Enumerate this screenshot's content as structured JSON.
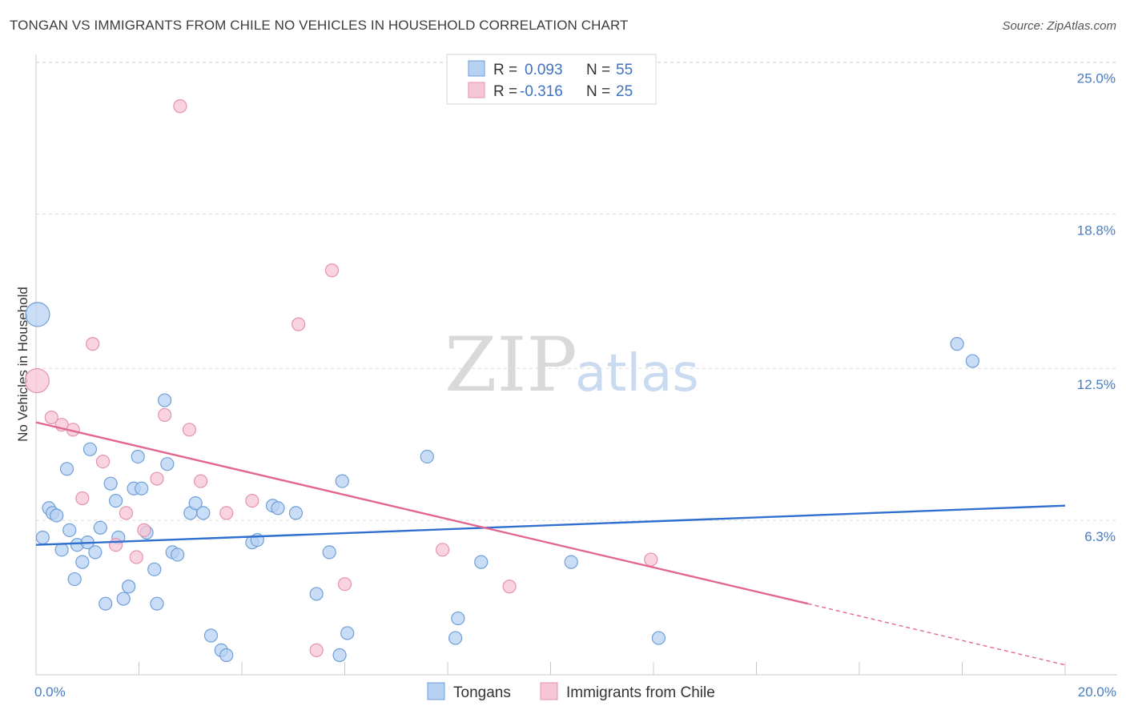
{
  "header": {
    "title": "TONGAN VS IMMIGRANTS FROM CHILE NO VEHICLES IN HOUSEHOLD CORRELATION CHART",
    "source": "Source: ZipAtlas.com"
  },
  "watermark": {
    "zip": "ZIP",
    "atlas": "atlas"
  },
  "colors": {
    "tongans_fill": "#b7d1f3",
    "tongans_stroke": "#6f9fd8",
    "tongans_line": "#2f6fcf",
    "chile_fill": "#f7c6d6",
    "chile_stroke": "#e592ad",
    "chile_line": "#e2678f",
    "grid": "#dcdcdc",
    "tick_text": "#4a7cc0"
  },
  "legend": {
    "rows": [
      {
        "r_label": "R =",
        "r_value": "0.093",
        "n_label": "N =",
        "n_value": "55"
      },
      {
        "r_label": "R =",
        "r_value": "-0.316",
        "n_label": "N =",
        "n_value": "25"
      }
    ]
  },
  "chart_data": {
    "type": "scatter",
    "title": "TONGAN VS IMMIGRANTS FROM CHILE NO VEHICLES IN HOUSEHOLD CORRELATION CHART",
    "xlabel": "",
    "ylabel": "No Vehicles in Household",
    "xlim": [
      0,
      20
    ],
    "ylim": [
      0,
      25.8
    ],
    "x_tick_labels": [
      "0.0%",
      "20.0%"
    ],
    "y_ticks": [
      {
        "value": 6.3,
        "label": "6.3%"
      },
      {
        "value": 12.5,
        "label": "12.5%"
      },
      {
        "value": 18.8,
        "label": "18.8%"
      },
      {
        "value": 25.0,
        "label": "25.0%"
      }
    ],
    "series": [
      {
        "name": "Tongans",
        "r": 0.093,
        "n": 55,
        "trend": {
          "x": [
            0,
            20
          ],
          "y": [
            5.3,
            6.9
          ]
        },
        "points": [
          {
            "x": 0.03,
            "y": 14.7,
            "big": true
          },
          {
            "x": 0.13,
            "y": 5.6
          },
          {
            "x": 0.25,
            "y": 6.8
          },
          {
            "x": 0.32,
            "y": 6.6
          },
          {
            "x": 0.4,
            "y": 6.5
          },
          {
            "x": 0.5,
            "y": 5.1
          },
          {
            "x": 0.6,
            "y": 8.4
          },
          {
            "x": 0.65,
            "y": 5.9
          },
          {
            "x": 0.75,
            "y": 3.9
          },
          {
            "x": 0.8,
            "y": 5.3
          },
          {
            "x": 0.9,
            "y": 4.6
          },
          {
            "x": 1.0,
            "y": 5.4
          },
          {
            "x": 1.05,
            "y": 9.2
          },
          {
            "x": 1.15,
            "y": 5.0
          },
          {
            "x": 1.25,
            "y": 6.0
          },
          {
            "x": 1.35,
            "y": 2.9
          },
          {
            "x": 1.45,
            "y": 7.8
          },
          {
            "x": 1.55,
            "y": 7.1
          },
          {
            "x": 1.6,
            "y": 5.6
          },
          {
            "x": 1.7,
            "y": 3.1
          },
          {
            "x": 1.8,
            "y": 3.6
          },
          {
            "x": 1.9,
            "y": 7.6
          },
          {
            "x": 1.98,
            "y": 8.9
          },
          {
            "x": 2.05,
            "y": 7.6
          },
          {
            "x": 2.15,
            "y": 5.8
          },
          {
            "x": 2.3,
            "y": 4.3
          },
          {
            "x": 2.35,
            "y": 2.9
          },
          {
            "x": 2.5,
            "y": 11.2
          },
          {
            "x": 2.55,
            "y": 8.6
          },
          {
            "x": 2.65,
            "y": 5.0
          },
          {
            "x": 2.75,
            "y": 4.9
          },
          {
            "x": 3.0,
            "y": 6.6
          },
          {
            "x": 3.1,
            "y": 7.0
          },
          {
            "x": 3.25,
            "y": 6.6
          },
          {
            "x": 3.4,
            "y": 1.6
          },
          {
            "x": 3.6,
            "y": 1.0
          },
          {
            "x": 3.7,
            "y": 0.8
          },
          {
            "x": 4.2,
            "y": 5.4
          },
          {
            "x": 4.3,
            "y": 5.5
          },
          {
            "x": 4.6,
            "y": 6.9
          },
          {
            "x": 4.7,
            "y": 6.8
          },
          {
            "x": 5.05,
            "y": 6.6
          },
          {
            "x": 5.45,
            "y": 3.3
          },
          {
            "x": 5.7,
            "y": 5.0
          },
          {
            "x": 5.9,
            "y": 0.8
          },
          {
            "x": 5.95,
            "y": 7.9
          },
          {
            "x": 6.05,
            "y": 1.7
          },
          {
            "x": 7.6,
            "y": 8.9
          },
          {
            "x": 8.15,
            "y": 1.5
          },
          {
            "x": 8.2,
            "y": 2.3
          },
          {
            "x": 8.65,
            "y": 4.6
          },
          {
            "x": 10.4,
            "y": 4.6
          },
          {
            "x": 12.1,
            "y": 1.5
          },
          {
            "x": 17.9,
            "y": 13.5
          },
          {
            "x": 18.2,
            "y": 12.8
          }
        ]
      },
      {
        "name": "Immigrants from Chile",
        "r": -0.316,
        "n": 25,
        "trend": {
          "x": [
            0,
            15
          ],
          "y": [
            10.3,
            2.9
          ]
        },
        "trend_dashed": {
          "x": [
            15,
            20
          ],
          "y": [
            2.9,
            0.4
          ]
        },
        "points": [
          {
            "x": 0.02,
            "y": 12.0,
            "big": true
          },
          {
            "x": 0.3,
            "y": 10.5
          },
          {
            "x": 0.5,
            "y": 10.2
          },
          {
            "x": 0.72,
            "y": 10.0
          },
          {
            "x": 0.9,
            "y": 7.2
          },
          {
            "x": 1.1,
            "y": 13.5
          },
          {
            "x": 1.3,
            "y": 8.7
          },
          {
            "x": 1.55,
            "y": 5.3
          },
          {
            "x": 1.75,
            "y": 6.6
          },
          {
            "x": 1.95,
            "y": 4.8
          },
          {
            "x": 2.1,
            "y": 5.9
          },
          {
            "x": 2.35,
            "y": 8.0
          },
          {
            "x": 2.8,
            "y": 23.2
          },
          {
            "x": 2.5,
            "y": 10.6
          },
          {
            "x": 2.98,
            "y": 10.0
          },
          {
            "x": 3.2,
            "y": 7.9
          },
          {
            "x": 3.7,
            "y": 6.6
          },
          {
            "x": 4.2,
            "y": 7.1
          },
          {
            "x": 5.1,
            "y": 14.3
          },
          {
            "x": 5.45,
            "y": 1.0
          },
          {
            "x": 5.75,
            "y": 16.5
          },
          {
            "x": 6.0,
            "y": 3.7
          },
          {
            "x": 7.9,
            "y": 5.1
          },
          {
            "x": 9.2,
            "y": 3.6
          },
          {
            "x": 11.95,
            "y": 4.7
          }
        ]
      }
    ]
  }
}
